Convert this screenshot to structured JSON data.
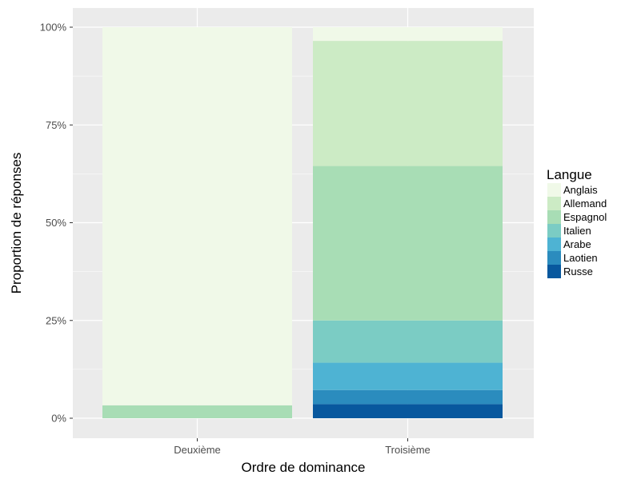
{
  "chart_data": {
    "type": "bar",
    "stacked": true,
    "normalized": true,
    "categories": [
      "Deuxième",
      "Troisième"
    ],
    "series": [
      {
        "name": "Anglais",
        "color": "#f0f9e8",
        "values": [
          0.967,
          0.035
        ]
      },
      {
        "name": "Allemand",
        "color": "#ccebc5",
        "values": [
          0.0,
          0.32
        ]
      },
      {
        "name": "Espagnol",
        "color": "#a8ddb5",
        "values": [
          0.033,
          0.395
        ]
      },
      {
        "name": "Italien",
        "color": "#7bccc4",
        "values": [
          0.0,
          0.108
        ]
      },
      {
        "name": "Arabe",
        "color": "#4eb3d3",
        "values": [
          0.0,
          0.07
        ]
      },
      {
        "name": "Laotien",
        "color": "#2b8cbe",
        "values": [
          0.0,
          0.036
        ]
      },
      {
        "name": "Russe",
        "color": "#08589e",
        "values": [
          0.0,
          0.036
        ]
      }
    ],
    "xlabel": "Ordre de dominance",
    "ylabel": "Proportion de réponses",
    "ylim": [
      0,
      1
    ],
    "yticks": [
      0,
      0.25,
      0.5,
      0.75,
      1
    ],
    "ytick_labels": [
      "0%",
      "25%",
      "50%",
      "75%",
      "100%"
    ],
    "legend_title": "Langue",
    "legend_position": "right",
    "grid": true,
    "panel_color": "#ebebeb"
  }
}
